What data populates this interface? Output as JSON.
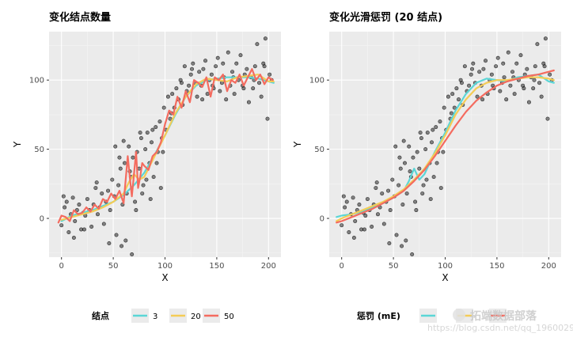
{
  "chart_data": [
    {
      "type": "scatter",
      "title": "变化结点数量",
      "xlabel": "X",
      "ylabel": "Y",
      "xlim": [
        -12,
        212
      ],
      "ylim": [
        -28,
        135
      ],
      "xticks": [
        0,
        50,
        100,
        150,
        200
      ],
      "yticks": [
        0,
        50,
        100
      ],
      "grid": true,
      "legend": {
        "title": "结点",
        "position": "bottom",
        "entries": [
          "3",
          "20",
          "50"
        ]
      },
      "series": [
        {
          "name": "3",
          "color": "#5bd6d6",
          "x": [
            0,
            10,
            20,
            30,
            40,
            50,
            60,
            70,
            80,
            90,
            100,
            110,
            120,
            130,
            140,
            150,
            160,
            170,
            180,
            190,
            200,
            205
          ],
          "y": [
            -2,
            2,
            4,
            6,
            9,
            12,
            17,
            24,
            33,
            46,
            60,
            75,
            88,
            96,
            100,
            101,
            102,
            102,
            102,
            101,
            99,
            98
          ]
        },
        {
          "name": "20",
          "color": "#f4cc56",
          "x": [
            0,
            10,
            20,
            30,
            40,
            50,
            60,
            65,
            70,
            75,
            80,
            90,
            100,
            110,
            120,
            130,
            140,
            150,
            160,
            170,
            180,
            190,
            200,
            205
          ],
          "y": [
            -1,
            1,
            3,
            5,
            8,
            12,
            18,
            26,
            32,
            28,
            30,
            45,
            60,
            76,
            88,
            97,
            101,
            100,
            99,
            102,
            103,
            104,
            99,
            99
          ]
        },
        {
          "name": "50",
          "color": "#f46b5f",
          "x": [
            -3,
            0,
            4,
            8,
            12,
            16,
            20,
            24,
            28,
            32,
            36,
            40,
            44,
            48,
            52,
            56,
            60,
            62,
            64,
            66,
            68,
            70,
            72,
            74,
            76,
            78,
            80,
            84,
            88,
            92,
            96,
            100,
            104,
            108,
            112,
            116,
            120,
            124,
            128,
            132,
            136,
            140,
            144,
            148,
            152,
            156,
            160,
            164,
            168,
            172,
            176,
            180,
            184,
            188,
            192,
            196,
            200,
            204
          ],
          "y": [
            -3,
            2,
            1,
            -2,
            6,
            3,
            4,
            8,
            5,
            10,
            7,
            14,
            12,
            18,
            14,
            20,
            11,
            28,
            45,
            30,
            16,
            32,
            48,
            22,
            30,
            40,
            38,
            35,
            45,
            48,
            55,
            68,
            78,
            75,
            88,
            80,
            92,
            84,
            100,
            98,
            95,
            102,
            88,
            102,
            100,
            104,
            92,
            100,
            98,
            104,
            96,
            102,
            108,
            100,
            104,
            97,
            102,
            100
          ]
        }
      ],
      "points": {
        "x": [
          0,
          3,
          5,
          7,
          9,
          11,
          13,
          15,
          17,
          19,
          21,
          23,
          25,
          27,
          29,
          31,
          33,
          35,
          37,
          39,
          41,
          43,
          45,
          47,
          49,
          51,
          53,
          55,
          57,
          59,
          61,
          63,
          65,
          67,
          69,
          71,
          73,
          75,
          77,
          79,
          81,
          83,
          85,
          87,
          89,
          91,
          93,
          95,
          97,
          99,
          101,
          103,
          105,
          107,
          109,
          111,
          113,
          115,
          117,
          119,
          121,
          123,
          125,
          127,
          129,
          131,
          133,
          135,
          137,
          139,
          141,
          143,
          145,
          147,
          149,
          151,
          153,
          155,
          157,
          159,
          161,
          163,
          165,
          167,
          169,
          171,
          173,
          175,
          177,
          179,
          181,
          183,
          185,
          187,
          189,
          191,
          193,
          195,
          197,
          199,
          201,
          203,
          2,
          12,
          22,
          34,
          46,
          58,
          66,
          76,
          86,
          96,
          106,
          116,
          126,
          136,
          146,
          156,
          166,
          176,
          186,
          196,
          56,
          62,
          72,
          82,
          92,
          52,
          60,
          68,
          78,
          88,
          98
        ],
        "y": [
          -5,
          8,
          12,
          -10,
          3,
          15,
          -2,
          6,
          10,
          -8,
          4,
          2,
          14,
          6,
          -6,
          10,
          22,
          3,
          8,
          18,
          -4,
          12,
          20,
          6,
          28,
          16,
          -12,
          24,
          36,
          10,
          40,
          18,
          52,
          30,
          44,
          12,
          48,
          36,
          58,
          24,
          50,
          62,
          40,
          55,
          30,
          66,
          48,
          70,
          58,
          80,
          64,
          88,
          72,
          90,
          80,
          94,
          86,
          100,
          82,
          110,
          92,
          96,
          104,
          112,
          98,
          88,
          106,
          96,
          108,
          114,
          90,
          100,
          104,
          94,
          110,
          116,
          92,
          98,
          102,
          86,
          120,
          96,
          106,
          90,
          112,
          100,
          118,
          96,
          104,
          108,
          84,
          102,
          94,
          110,
          126,
          98,
          88,
          112,
          130,
          72,
          104,
          100,
          16,
          -14,
          -8,
          26,
          -18,
          -20,
          34,
          62,
          14,
          22,
          76,
          98,
          108,
          86,
          96,
          112,
          102,
          94,
          100,
          110,
          44,
          -16,
          6,
          28,
          40,
          52,
          56,
          -26,
          18,
          64,
          48
        ]
      }
    },
    {
      "type": "scatter",
      "title": "变化光滑惩罚 (20 结点)",
      "xlabel": "X",
      "ylabel": "Y",
      "xlim": [
        -12,
        212
      ],
      "ylim": [
        -28,
        135
      ],
      "xticks": [
        0,
        50,
        100,
        150,
        200
      ],
      "yticks": [
        0,
        50,
        100
      ],
      "grid": true,
      "legend": {
        "title": "惩罚 (mE)",
        "position": "bottom",
        "entries": [
          "",
          "",
          ""
        ]
      },
      "series": [
        {
          "color": "#5bd6d6",
          "x": [
            -5,
            0,
            10,
            20,
            30,
            40,
            50,
            60,
            65,
            70,
            75,
            80,
            90,
            100,
            110,
            120,
            130,
            140,
            150,
            160,
            170,
            180,
            190,
            200,
            205
          ],
          "y": [
            1,
            2,
            3,
            5,
            8,
            11,
            15,
            20,
            27,
            36,
            28,
            32,
            48,
            62,
            78,
            90,
            98,
            101,
            100,
            99,
            102,
            103,
            104,
            99,
            98
          ]
        },
        {
          "color": "#f4cc56",
          "x": [
            -5,
            0,
            10,
            20,
            30,
            40,
            50,
            60,
            70,
            80,
            90,
            100,
            110,
            120,
            130,
            140,
            150,
            160,
            170,
            180,
            190,
            200,
            205
          ],
          "y": [
            -2,
            0,
            3,
            6,
            9,
            12,
            16,
            21,
            28,
            36,
            47,
            60,
            75,
            86,
            94,
            98,
            100,
            100,
            101,
            102,
            102,
            101,
            100
          ]
        },
        {
          "color": "#f46b5f",
          "x": [
            -5,
            0,
            10,
            20,
            30,
            40,
            50,
            60,
            70,
            80,
            90,
            100,
            110,
            120,
            130,
            140,
            150,
            160,
            170,
            180,
            190,
            200,
            205
          ],
          "y": [
            -3,
            -2,
            1,
            4,
            7,
            11,
            15,
            20,
            27,
            35,
            45,
            56,
            67,
            77,
            85,
            91,
            96,
            99,
            101,
            103,
            104,
            106,
            107
          ]
        }
      ],
      "points": {
        "x": [
          0,
          3,
          5,
          7,
          9,
          11,
          13,
          15,
          17,
          19,
          21,
          23,
          25,
          27,
          29,
          31,
          33,
          35,
          37,
          39,
          41,
          43,
          45,
          47,
          49,
          51,
          53,
          55,
          57,
          59,
          61,
          63,
          65,
          67,
          69,
          71,
          73,
          75,
          77,
          79,
          81,
          83,
          85,
          87,
          89,
          91,
          93,
          95,
          97,
          99,
          101,
          103,
          105,
          107,
          109,
          111,
          113,
          115,
          117,
          119,
          121,
          123,
          125,
          127,
          129,
          131,
          133,
          135,
          137,
          139,
          141,
          143,
          145,
          147,
          149,
          151,
          153,
          155,
          157,
          159,
          161,
          163,
          165,
          167,
          169,
          171,
          173,
          175,
          177,
          179,
          181,
          183,
          185,
          187,
          189,
          191,
          193,
          195,
          197,
          199,
          201,
          203,
          2,
          12,
          22,
          34,
          46,
          58,
          66,
          76,
          86,
          96,
          106,
          116,
          126,
          136,
          146,
          156,
          166,
          176,
          186,
          196,
          56,
          62,
          72,
          82,
          92,
          52,
          60,
          68,
          78,
          88,
          98
        ],
        "y": [
          -5,
          8,
          12,
          -10,
          3,
          15,
          -2,
          6,
          10,
          -8,
          4,
          2,
          14,
          6,
          -6,
          10,
          22,
          3,
          8,
          18,
          -4,
          12,
          20,
          6,
          28,
          16,
          -12,
          24,
          36,
          10,
          40,
          18,
          52,
          30,
          44,
          12,
          48,
          36,
          58,
          24,
          50,
          62,
          40,
          55,
          30,
          66,
          48,
          70,
          58,
          80,
          64,
          88,
          72,
          90,
          80,
          94,
          86,
          100,
          82,
          110,
          92,
          96,
          104,
          112,
          98,
          88,
          106,
          96,
          108,
          114,
          90,
          100,
          104,
          94,
          110,
          116,
          92,
          98,
          102,
          86,
          120,
          96,
          106,
          90,
          112,
          100,
          118,
          96,
          104,
          108,
          84,
          102,
          94,
          110,
          126,
          98,
          88,
          112,
          130,
          72,
          104,
          100,
          16,
          -14,
          -8,
          26,
          -18,
          -20,
          34,
          62,
          14,
          22,
          76,
          98,
          108,
          86,
          96,
          112,
          102,
          94,
          100,
          110,
          44,
          -16,
          6,
          28,
          40,
          52,
          56,
          -26,
          18,
          64,
          48
        ]
      }
    }
  ],
  "watermark": {
    "text": "拓端数据部落",
    "subtext": "https://blog.csdn.net/qq_19600291"
  }
}
